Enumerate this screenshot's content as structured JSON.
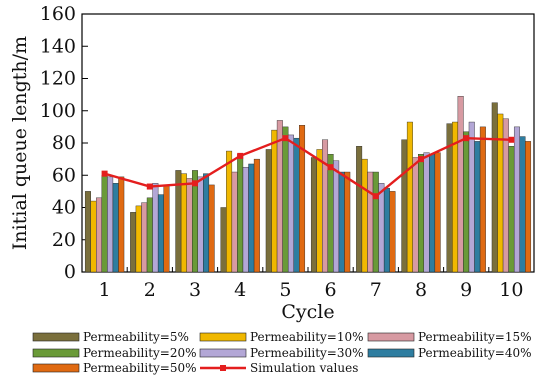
{
  "chart_data": {
    "type": "bar",
    "xlabel": "Cycle",
    "ylabel": "Initial queue length/m",
    "ylim": [
      0,
      160
    ],
    "y_ticks": [
      0,
      20,
      40,
      60,
      80,
      100,
      120,
      140,
      160
    ],
    "categories": [
      "1",
      "2",
      "3",
      "4",
      "5",
      "6",
      "7",
      "8",
      "9",
      "10"
    ],
    "series": [
      {
        "name": "Permeability=5%",
        "color": "#7a6f3c",
        "values": [
          50,
          37,
          63,
          40,
          76,
          71,
          78,
          82,
          92,
          105
        ]
      },
      {
        "name": "Permeability=10%",
        "color": "#f0b800",
        "values": [
          44,
          41,
          61,
          75,
          88,
          76,
          70,
          93,
          93,
          98
        ]
      },
      {
        "name": "Permeability=15%",
        "color": "#d79aa2",
        "values": [
          46,
          43,
          58,
          62,
          94,
          82,
          62,
          71,
          109,
          95
        ]
      },
      {
        "name": "Permeability=20%",
        "color": "#6a9a38",
        "values": [
          60,
          46,
          63,
          73,
          90,
          73,
          62,
          73,
          87,
          78
        ]
      },
      {
        "name": "Permeability=30%",
        "color": "#b3a7d6",
        "values": [
          59,
          55,
          59,
          65,
          85,
          69,
          55,
          74,
          93,
          90
        ]
      },
      {
        "name": "Permeability=40%",
        "color": "#2e7da0",
        "values": [
          55,
          48,
          61,
          67,
          83,
          62,
          52,
          73,
          81,
          84
        ]
      },
      {
        "name": "Permeability=50%",
        "color": "#e06a12",
        "values": [
          59,
          54,
          54,
          70,
          91,
          62,
          50,
          74,
          90,
          81
        ]
      }
    ],
    "line_series": {
      "name": "Simulation values",
      "color": "#e41e1e",
      "values": [
        61,
        53,
        55,
        72,
        83,
        65,
        47,
        70,
        83,
        82
      ]
    },
    "legend_position": "bottom"
  }
}
